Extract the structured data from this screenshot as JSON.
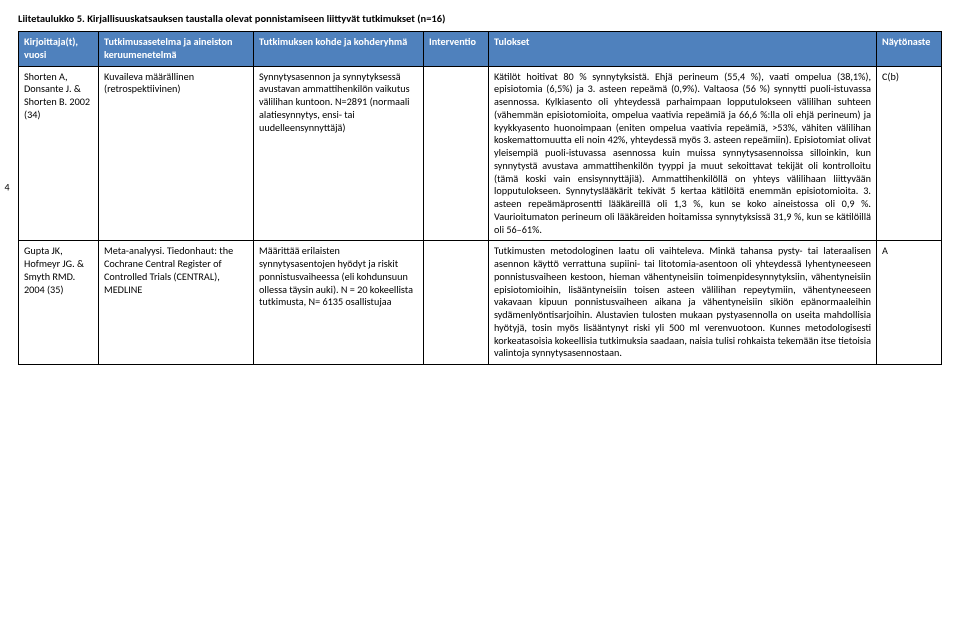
{
  "doc_title": "Liitetaulukko 5. Kirjallisuuskatsauksen taustalla olevat ponnistamiseen liittyvät tutkimukset (n=16)",
  "page_number": "4",
  "colors": {
    "header_bg": "#4f81bd",
    "header_fg": "#ffffff",
    "border": "#000000",
    "text": "#000000",
    "page_bg": "#ffffff"
  },
  "headers": {
    "author": "Kirjoittaja(t), vuosi",
    "method": "Tutkimusasetelma ja aineiston keruumenetelmä",
    "target": "Tutkimuksen kohde ja kohderyhmä",
    "intervention": "Interventio",
    "results": "Tulokset",
    "level": "Näytönaste"
  },
  "rows": [
    {
      "author": "Shorten A, Donsante J. & Shorten B. 2002 (34)",
      "method": "Kuvaileva määrällinen (retrospektiivinen)",
      "target": "Synnytysasennon ja synnytyksessä avustavan ammattihenkilön vaikutus välilihan kuntoon. N=2891 (normaali alatiesynnytys, ensi- tai uudelleensynnyttäjä)",
      "intervention": "",
      "results": "Kätilöt hoitivat 80 % synnytyksistä. Ehjä perineum (55,4 %), vaati ompelua (38,1%), episiotomia (6,5%) ja 3. asteen repeämä (0,9%). Valtaosa (56 %) synnytti puoli-istuvassa asennossa. Kylkiasento oli yhteydessä parhaimpaan lopputulokseen välilihan suhteen (vähemmän episiotomioita, ompelua vaativia repeämiä ja 66,6 %:lla oli ehjä perineum) ja kyykkyasento huonoimpaan (eniten ompelua vaativia repeämiä, >53%, vähiten välilihan koskemattomuutta eli noin 42%, yhteydessä myös 3. asteen repeämiin). Episiotomiat olivat yleisempiä puoli-istuvassa asennossa kuin muissa synnytysasennoissa silloinkin, kun synnytystä avustava ammattihenkilön tyyppi ja muut sekoittavat tekijät oli kontrolloitu (tämä koski vain ensisynnyttäjiä). Ammattihenkilöllä on yhteys välilihaan liittyvään lopputulokseen. Synnytyslääkärit tekivät 5 kertaa kätilöitä enemmän episiotomioita. 3. asteen repeämäprosentti lääkäreillä oli 1,3 %, kun se koko aineistossa oli 0,9 %. Vaurioitumaton perineum oli lääkäreiden hoitamissa synnytyksissä 31,9 %, kun se kätilöillä oli 56–61%.",
      "level": "C(b)"
    },
    {
      "author": "Gupta JK, Hofmeyr JG. & Smyth RMD. 2004 (35)",
      "method": "Meta-analyysi. Tiedonhaut: the Cochrane Central Register of Controlled Trials (CENTRAL), MEDLINE",
      "target": "Määrittää erilaisten synnytysasentojen hyödyt ja riskit ponnistusvaiheessa (eli kohdunsuun ollessa täysin auki). N = 20 kokeellista tutkimusta, N= 6135 osallistujaa",
      "intervention": "",
      "results": "Tutkimusten metodologinen laatu oli vaihteleva. Minkä tahansa pysty- tai lateraalisen asennon käyttö verrattuna supiini- tai litotomia-asentoon oli yhteydessä lyhentyneeseen ponnistusvaiheen kestoon, hieman vähentyneisiin toimenpidesynnytyksiin, vähentyneisiin episiotomioihin, lisääntyneisiin toisen asteen välilihan repeytymiin, vähentyneeseen vakavaan kipuun ponnistusvaiheen aikana ja vähentyneisiin sikiön epänormaaleihin sydämenlyöntisarjoihin. Alustavien tulosten mukaan pystyasennolla on useita mahdollisia hyötyjä, tosin myös lisääntynyt riski yli 500 ml verenvuotoon. Kunnes metodologisesti korkeatasoisia kokeellisia tutkimuksia saadaan, naisia tulisi rohkaista tekemään itse tietoisia valintoja synnytysasennostaan.",
      "level": "A"
    }
  ]
}
